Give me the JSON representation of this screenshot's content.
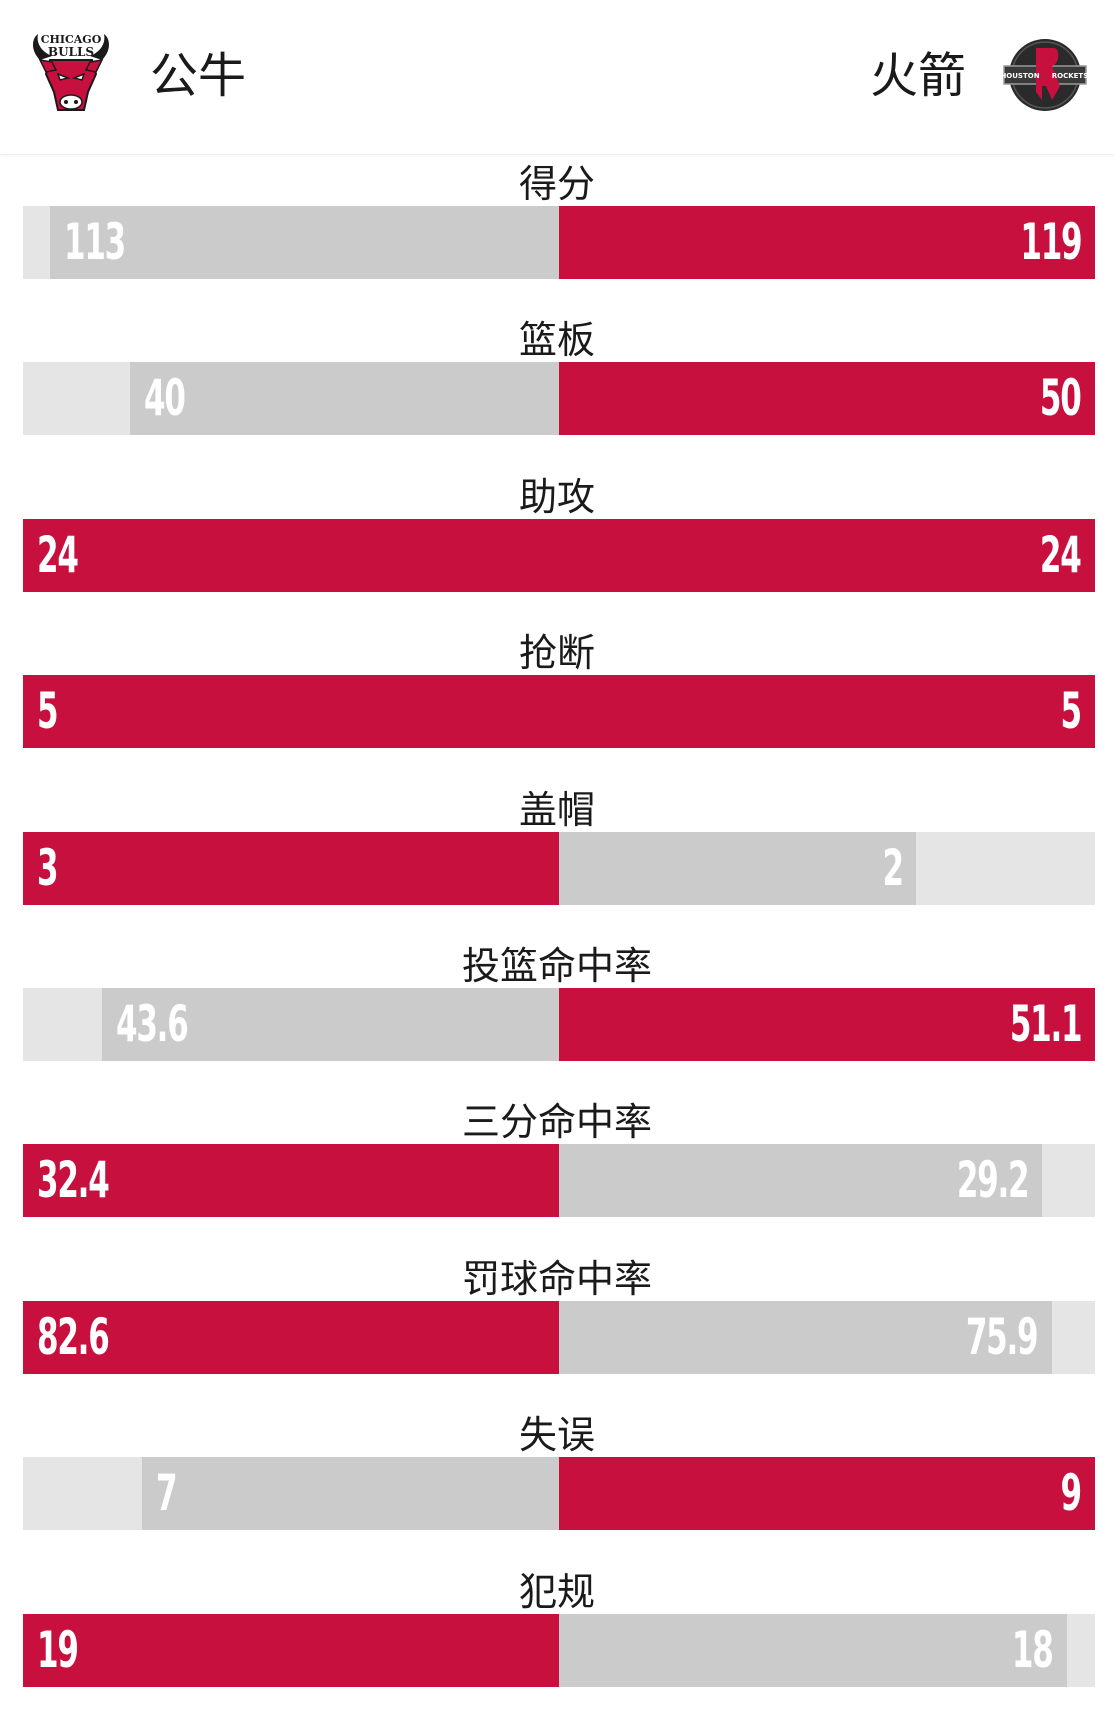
{
  "teams": {
    "home": {
      "name": "公牛",
      "logo_text_top": "CHICAGO",
      "logo_text_bottom": "BULLS",
      "logo_icon": "bulls-logo-icon"
    },
    "away": {
      "name": "火箭",
      "logo_text_left": "HOUSTON",
      "logo_text_right": "ROCKETS",
      "logo_icon": "rockets-logo-icon"
    }
  },
  "colors": {
    "accent_red": "#c8103e",
    "bar_gray": "#cbcbcb",
    "track_light": "#e5e5e5"
  },
  "stats": [
    {
      "label": "得分",
      "left": "113",
      "right": "119",
      "left_num": 113,
      "right_num": 119
    },
    {
      "label": "篮板",
      "left": "40",
      "right": "50",
      "left_num": 40,
      "right_num": 50
    },
    {
      "label": "助攻",
      "left": "24",
      "right": "24",
      "left_num": 24,
      "right_num": 24
    },
    {
      "label": "抢断",
      "left": "5",
      "right": "5",
      "left_num": 5,
      "right_num": 5
    },
    {
      "label": "盖帽",
      "left": "3",
      "right": "2",
      "left_num": 3,
      "right_num": 2
    },
    {
      "label": "投篮命中率",
      "left": "43.6",
      "right": "51.1",
      "left_num": 43.6,
      "right_num": 51.1
    },
    {
      "label": "三分命中率",
      "left": "32.4",
      "right": "29.2",
      "left_num": 32.4,
      "right_num": 29.2
    },
    {
      "label": "罚球命中率",
      "left": "82.6",
      "right": "75.9",
      "left_num": 82.6,
      "right_num": 75.9
    },
    {
      "label": "失误",
      "left": "7",
      "right": "9",
      "left_num": 7,
      "right_num": 9
    },
    {
      "label": "犯规",
      "left": "19",
      "right": "18",
      "left_num": 19,
      "right_num": 18
    }
  ]
}
